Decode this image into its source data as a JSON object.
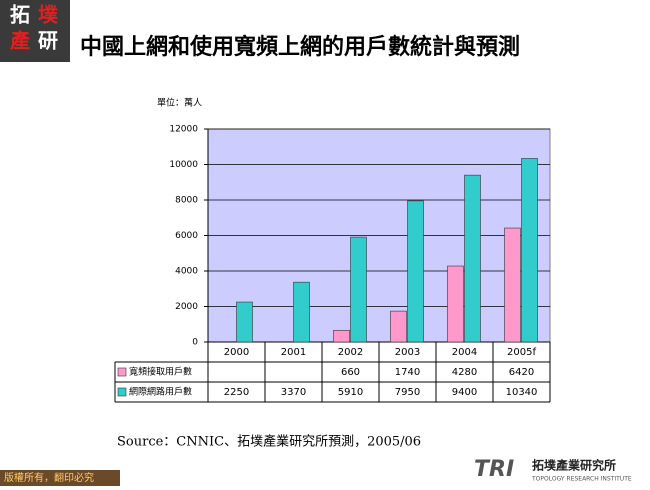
{
  "header": {
    "logo": [
      "拓",
      "墣",
      "產",
      "研"
    ],
    "title": "中國上網和使用寬頻上網的用戶數統計與預測"
  },
  "chart_data": {
    "type": "bar",
    "unit_label": "單位：萬人",
    "categories": [
      "2000",
      "2001",
      "2002",
      "2003",
      "2004",
      "2005f"
    ],
    "series": [
      {
        "name": "寬頻接取用戶數",
        "color": "#ff99cc",
        "values": [
          null,
          null,
          660,
          1740,
          4280,
          6420
        ]
      },
      {
        "name": "網際網路用戶數",
        "color": "#33cccc",
        "values": [
          2250,
          3370,
          5910,
          7950,
          9400,
          10340
        ]
      }
    ],
    "ylim": [
      0,
      12000
    ],
    "yticks": [
      0,
      2000,
      4000,
      6000,
      8000,
      10000,
      12000
    ],
    "grid": true,
    "plot_background": "#ccccff"
  },
  "source": "Source：CNNIC、拓墣產業研究所預測，2005/06",
  "footer": {
    "copyright": "版權所有，翻印必究",
    "brand": "TRI",
    "institute": "拓墣產業研究所",
    "institute_en": "TOPOLOGY RESEARCH INSTITUTE"
  }
}
